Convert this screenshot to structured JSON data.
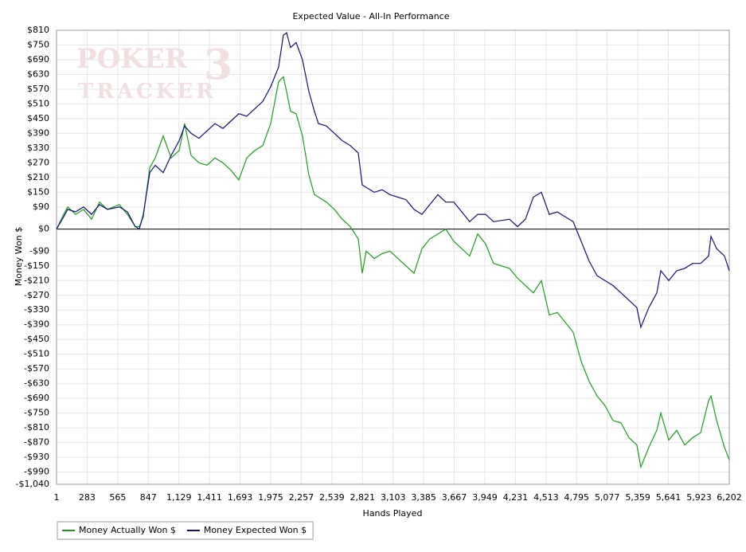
{
  "chart_data": {
    "type": "line",
    "title": "Expected Value - All-In Performance",
    "xlabel": "Hands Played",
    "ylabel": "Money Won $",
    "watermark": {
      "line1": "POKER",
      "mark": "3",
      "line2": "TRACKER"
    },
    "xlim": [
      1,
      6202
    ],
    "ylim": [
      -1040,
      810
    ],
    "grid": true,
    "legend": "bottom-left",
    "xticks": [
      1,
      283,
      565,
      847,
      {
        "value": 1129,
        "label": "1,129"
      },
      {
        "value": 1411,
        "label": "1,411"
      },
      {
        "value": 1693,
        "label": "1,693"
      },
      {
        "value": 1975,
        "label": "1,975"
      },
      {
        "value": 2257,
        "label": "2,257"
      },
      {
        "value": 2539,
        "label": "2,539"
      },
      {
        "value": 2821,
        "label": "2,821"
      },
      {
        "value": 3103,
        "label": "3,103"
      },
      {
        "value": 3385,
        "label": "3,385"
      },
      {
        "value": 3667,
        "label": "3,667"
      },
      {
        "value": 3949,
        "label": "3,949"
      },
      {
        "value": 4231,
        "label": "4,231"
      },
      {
        "value": 4513,
        "label": "4,513"
      },
      {
        "value": 4795,
        "label": "4,795"
      },
      {
        "value": 5077,
        "label": "5,077"
      },
      {
        "value": 5359,
        "label": "5,359"
      },
      {
        "value": 5641,
        "label": "5,641"
      },
      {
        "value": 5923,
        "label": "5,923"
      },
      {
        "value": 6202,
        "label": "6,202"
      }
    ],
    "yticks": [
      {
        "value": 810,
        "label": "$810"
      },
      {
        "value": 750,
        "label": "$750"
      },
      {
        "value": 690,
        "label": "$690"
      },
      {
        "value": 630,
        "label": "$630"
      },
      {
        "value": 570,
        "label": "$570"
      },
      {
        "value": 510,
        "label": "$510"
      },
      {
        "value": 450,
        "label": "$450"
      },
      {
        "value": 390,
        "label": "$390"
      },
      {
        "value": 330,
        "label": "$330"
      },
      {
        "value": 270,
        "label": "$270"
      },
      {
        "value": 210,
        "label": "$210"
      },
      {
        "value": 150,
        "label": "$150"
      },
      {
        "value": 90,
        "label": "$90"
      },
      {
        "value": 0,
        "label": "$0"
      },
      {
        "value": -90,
        "label": "-$90"
      },
      {
        "value": -150,
        "label": "-$150"
      },
      {
        "value": -210,
        "label": "-$210"
      },
      {
        "value": -270,
        "label": "-$270"
      },
      {
        "value": -330,
        "label": "-$330"
      },
      {
        "value": -390,
        "label": "-$390"
      },
      {
        "value": -450,
        "label": "-$450"
      },
      {
        "value": -510,
        "label": "-$510"
      },
      {
        "value": -570,
        "label": "-$570"
      },
      {
        "value": -630,
        "label": "-$630"
      },
      {
        "value": -690,
        "label": "-$690"
      },
      {
        "value": -750,
        "label": "-$750"
      },
      {
        "value": -810,
        "label": "-$810"
      },
      {
        "value": -870,
        "label": "-$870"
      },
      {
        "value": -930,
        "label": "-$930"
      },
      {
        "value": -990,
        "label": "-$990"
      },
      {
        "value": -1040,
        "label": "-$1,040"
      }
    ],
    "x": [
      1,
      67,
      104,
      177,
      250,
      324,
      397,
      471,
      581,
      654,
      727,
      764,
      801,
      860,
      911,
      984,
      1058,
      1131,
      1182,
      1241,
      1314,
      1388,
      1461,
      1535,
      1608,
      1681,
      1755,
      1828,
      1902,
      1975,
      2048,
      2092,
      2122,
      2158,
      2210,
      2268,
      2327,
      2378,
      2415,
      2489,
      2562,
      2635,
      2709,
      2782,
      2819,
      2855,
      2929,
      3002,
      3075,
      3222,
      3296,
      3369,
      3442,
      3516,
      3589,
      3663,
      3736,
      3809,
      3883,
      3956,
      4029,
      4176,
      4250,
      4323,
      4396,
      4470,
      4543,
      4617,
      4690,
      4763,
      4837,
      4910,
      4983,
      5057,
      5130,
      5204,
      5277,
      5350,
      5387,
      5460,
      5534,
      5571,
      5644,
      5718,
      5791,
      5864,
      5938,
      6011,
      6033,
      6085,
      6158,
      6202
    ],
    "series": [
      {
        "name": "Money Actually Won $",
        "color": "#1a9e1a",
        "values": [
          0,
          60,
          90,
          60,
          80,
          40,
          110,
          80,
          100,
          60,
          10,
          10,
          50,
          250,
          290,
          380,
          290,
          320,
          430,
          300,
          270,
          260,
          290,
          270,
          240,
          200,
          290,
          320,
          340,
          430,
          600,
          620,
          560,
          480,
          470,
          380,
          220,
          140,
          130,
          110,
          80,
          40,
          10,
          -40,
          -180,
          -90,
          -120,
          -100,
          -90,
          -150,
          -180,
          -80,
          -40,
          -20,
          0,
          -50,
          -80,
          -110,
          -20,
          -60,
          -140,
          -160,
          -200,
          -230,
          -260,
          -210,
          -350,
          -340,
          -380,
          -420,
          -540,
          -620,
          -680,
          -720,
          -780,
          -790,
          -850,
          -880,
          -970,
          -890,
          -820,
          -750,
          -860,
          -820,
          -880,
          -850,
          -830,
          -700,
          -680,
          -780,
          -890,
          -940
        ]
      },
      {
        "name": "Money Expected Won $",
        "color": "#10107a",
        "values": [
          0,
          50,
          80,
          70,
          90,
          60,
          100,
          80,
          90,
          70,
          10,
          0,
          60,
          230,
          260,
          230,
          300,
          360,
          420,
          390,
          370,
          400,
          430,
          410,
          440,
          470,
          460,
          490,
          520,
          580,
          660,
          790,
          800,
          740,
          760,
          690,
          560,
          480,
          430,
          420,
          390,
          360,
          340,
          310,
          180,
          170,
          150,
          160,
          140,
          120,
          80,
          60,
          100,
          140,
          110,
          110,
          70,
          30,
          60,
          60,
          30,
          40,
          10,
          40,
          130,
          150,
          60,
          70,
          50,
          30,
          -50,
          -130,
          -190,
          -210,
          -230,
          -260,
          -290,
          -320,
          -400,
          -320,
          -260,
          -170,
          -210,
          -170,
          -160,
          -140,
          -140,
          -110,
          -30,
          -80,
          -110,
          -170
        ]
      }
    ]
  }
}
